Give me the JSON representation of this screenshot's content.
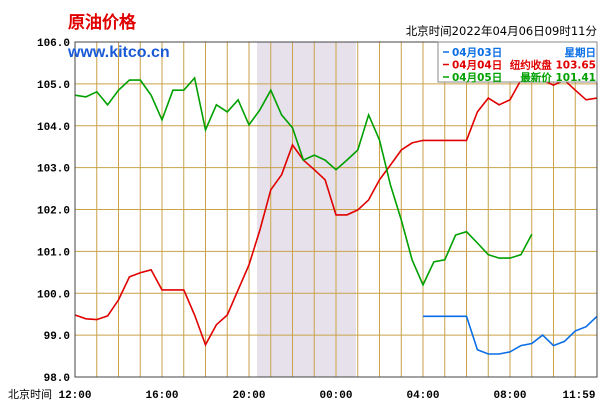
{
  "chart_data": {
    "type": "line",
    "title": "原油价格",
    "subtitle": "www.kitco.cn",
    "timestamp": "北京时间2022年04月06日09时11分",
    "xlabel": "北京时间",
    "x": [
      0,
      0.5,
      1,
      1.5,
      2,
      2.5,
      3,
      3.5,
      4,
      4.5,
      5,
      5.5,
      6,
      6.5,
      7,
      7.5,
      8,
      8.5,
      9,
      9.5,
      10,
      10.5,
      11,
      11.5,
      12,
      12.5,
      13,
      13.5,
      14,
      14.5,
      15,
      15.5,
      16,
      16.5,
      17,
      17.5,
      18,
      18.5,
      19,
      19.5,
      20,
      20.5,
      21,
      21.5,
      22,
      22.5,
      23,
      23.5,
      24
    ],
    "xlim": [
      0,
      24
    ],
    "xticks": [
      {
        "value": 0,
        "label": "12:00"
      },
      {
        "value": 4,
        "label": "16:00"
      },
      {
        "value": 8,
        "label": "20:00"
      },
      {
        "value": 12,
        "label": "00:00"
      },
      {
        "value": 16,
        "label": "04:00"
      },
      {
        "value": 20,
        "label": "08:00"
      },
      {
        "value": 23.98,
        "label": "11:59"
      }
    ],
    "ylim": [
      98,
      106
    ],
    "yticks": [
      {
        "value": 98,
        "label": "98.0"
      },
      {
        "value": 99,
        "label": "99.0"
      },
      {
        "value": 100,
        "label": "100.0"
      },
      {
        "value": 101,
        "label": "101.0"
      },
      {
        "value": 102,
        "label": "102.0"
      },
      {
        "value": 103,
        "label": "103.0"
      },
      {
        "value": 104,
        "label": "104.0"
      },
      {
        "value": 105,
        "label": "105.0"
      },
      {
        "value": 106,
        "label": "106.0"
      }
    ],
    "grid": true,
    "series": [
      {
        "name": "04月03日",
        "note": "星期日",
        "color": "#0a6ee6",
        "values": [
          null,
          null,
          null,
          null,
          null,
          null,
          null,
          null,
          null,
          null,
          null,
          null,
          null,
          null,
          null,
          null,
          null,
          null,
          null,
          null,
          null,
          null,
          null,
          null,
          null,
          null,
          null,
          null,
          null,
          null,
          null,
          null,
          99.45,
          99.45,
          99.45,
          99.45,
          99.45,
          98.65,
          98.55,
          98.55,
          98.6,
          98.75,
          98.8,
          99.0,
          98.75,
          98.85,
          99.1,
          99.2,
          99.45
        ]
      },
      {
        "name": "04月04日",
        "note": "纽约收盘 103.65",
        "color": "#e00000",
        "values": [
          99.48,
          99.39,
          99.37,
          99.46,
          99.84,
          100.39,
          100.49,
          100.56,
          100.08,
          100.08,
          100.08,
          99.48,
          98.77,
          99.25,
          99.48,
          100.08,
          100.68,
          101.51,
          102.47,
          102.83,
          103.54,
          103.18,
          102.95,
          102.71,
          101.87,
          101.87,
          101.99,
          102.23,
          102.71,
          103.06,
          103.42,
          103.59,
          103.65,
          103.65,
          103.65,
          103.65,
          103.65,
          104.33,
          104.66,
          104.5,
          104.62,
          105.09,
          105.05,
          105.09,
          104.97,
          105.09,
          104.85,
          104.62,
          104.66
        ]
      },
      {
        "name": "04月05日",
        "note": "最新价 101.41",
        "color": "#00a000",
        "values": [
          104.73,
          104.69,
          104.81,
          104.5,
          104.85,
          105.09,
          105.09,
          104.73,
          104.14,
          104.85,
          104.85,
          105.14,
          103.9,
          104.5,
          104.33,
          104.62,
          104.02,
          104.38,
          104.85,
          104.26,
          103.95,
          103.18,
          103.3,
          103.18,
          102.95,
          103.18,
          103.42,
          104.26,
          103.66,
          102.59,
          101.75,
          100.8,
          100.2,
          100.75,
          100.8,
          101.39,
          101.47,
          101.2,
          100.92,
          100.84,
          100.84,
          100.92,
          101.41,
          null,
          null,
          null,
          null,
          null,
          null
        ]
      }
    ]
  }
}
